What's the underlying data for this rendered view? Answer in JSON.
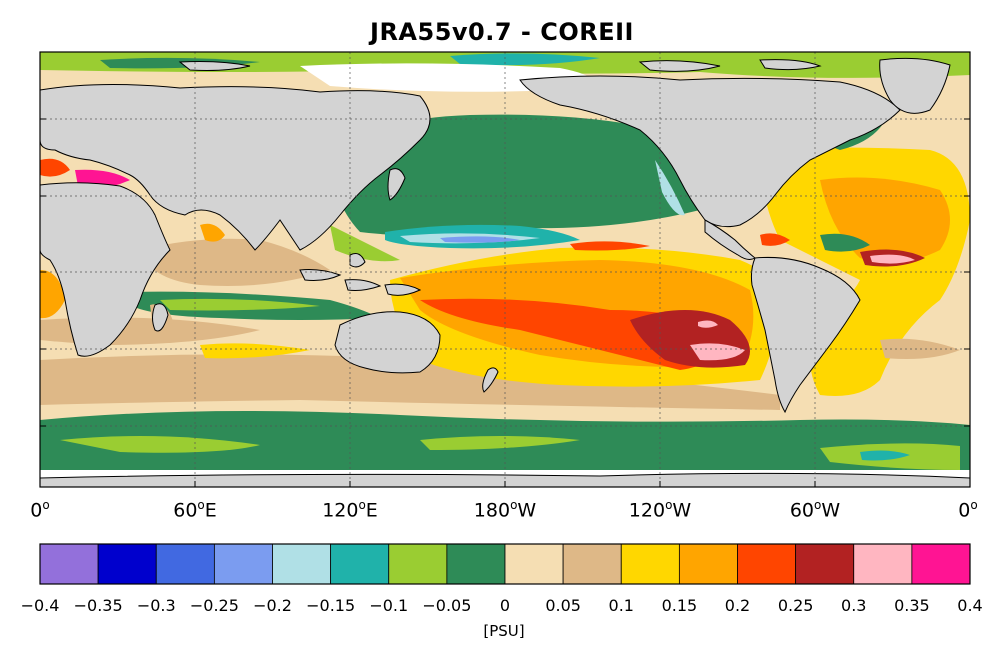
{
  "title": "JRA55v0.7 - COREII",
  "units": "[PSU]",
  "x_ticks": [
    {
      "num": "0",
      "sup": "o",
      "suffix": ""
    },
    {
      "num": "60",
      "sup": "o",
      "suffix": "E"
    },
    {
      "num": "120",
      "sup": "o",
      "suffix": "E"
    },
    {
      "num": "180",
      "sup": "o",
      "suffix": "W"
    },
    {
      "num": "120",
      "sup": "o",
      "suffix": "W"
    },
    {
      "num": "60",
      "sup": "o",
      "suffix": "W"
    },
    {
      "num": "0",
      "sup": "o",
      "suffix": ""
    }
  ],
  "colorbar": {
    "labels": [
      "-0.4",
      "-0.35",
      "-0.3",
      "-0.25",
      "-0.2",
      "-0.15",
      "-0.1",
      "-0.05",
      "0",
      "0.05",
      "0.1",
      "0.15",
      "0.2",
      "0.25",
      "0.3",
      "0.35",
      "0.4"
    ],
    "colors": [
      "#9370DB",
      "#0000CD",
      "#4169E1",
      "#7B9CF0",
      "#B0E0E6",
      "#20B2AA",
      "#9ACD32",
      "#2E8B57",
      "#F5DEB3",
      "#DEB887",
      "#FFD700",
      "#FFA500",
      "#FF4500",
      "#B22222",
      "#FFB6C1",
      "#FF1493"
    ]
  },
  "colors": {
    "land": "#D3D3D3",
    "coast": "#000000",
    "grid": "#555555"
  }
}
